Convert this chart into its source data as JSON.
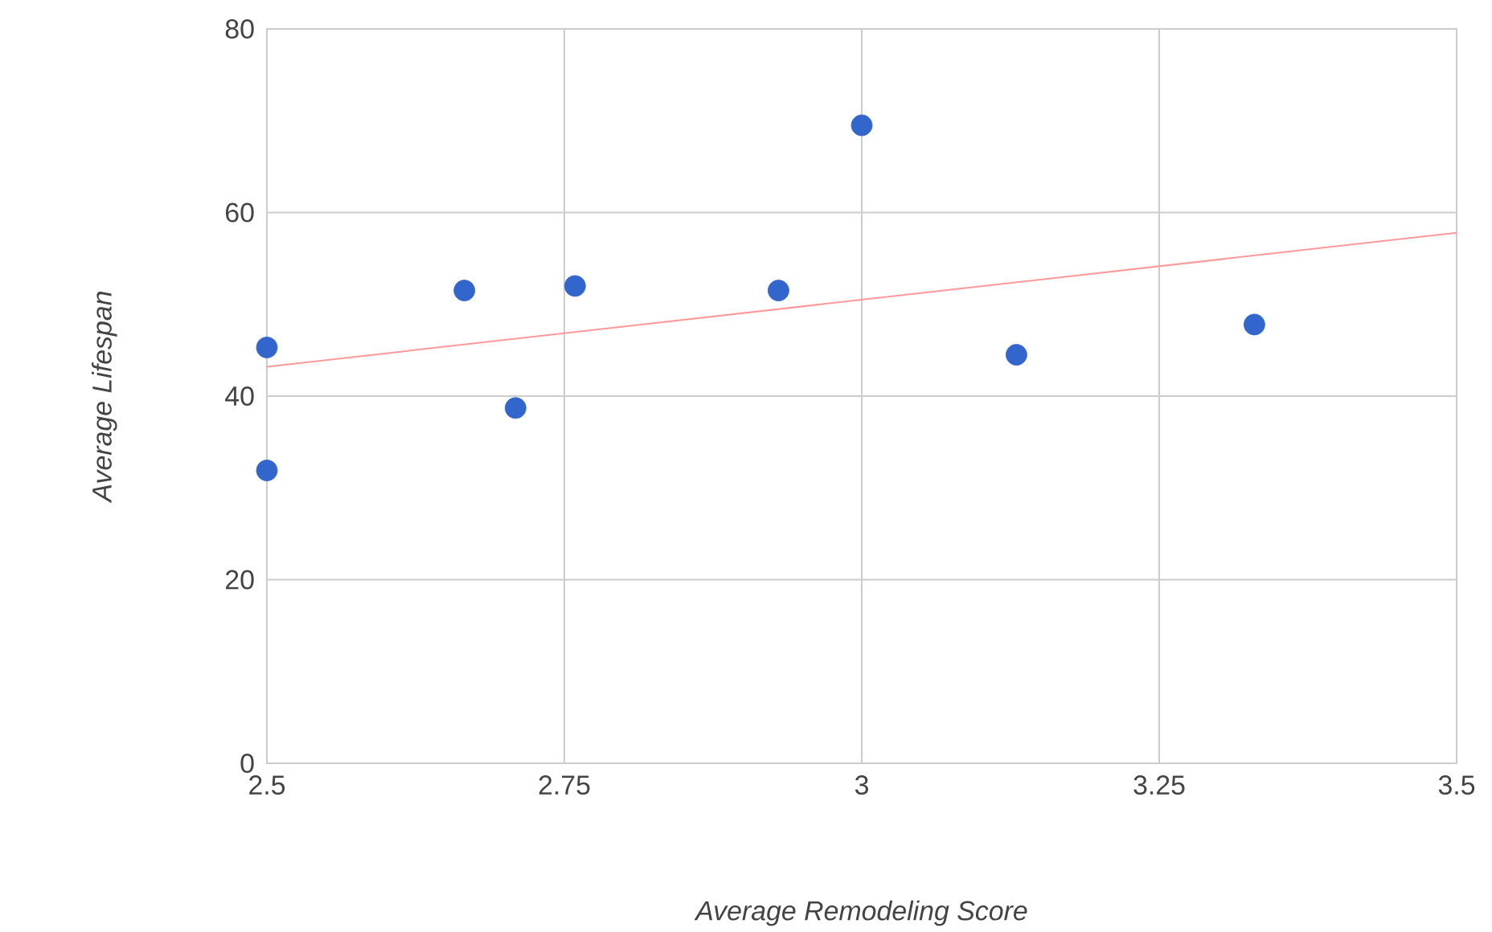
{
  "chart_data": {
    "type": "scatter",
    "xlabel": "Average Remodeling Score",
    "ylabel": "Average Lifespan",
    "xlim": [
      2.5,
      3.5
    ],
    "ylim": [
      0,
      80
    ],
    "xticks": [
      2.5,
      2.75,
      3,
      3.25,
      3.5
    ],
    "yticks": [
      0,
      20,
      40,
      60,
      80
    ],
    "grid": true,
    "series": [
      {
        "color": "#3366cc",
        "marker": "circle",
        "x": [
          2.5,
          2.5,
          2.666,
          2.709,
          2.759,
          2.93,
          3.0,
          3.13,
          3.33
        ],
        "values": [
          45.3,
          31.9,
          51.5,
          38.7,
          52.0,
          51.5,
          69.5,
          44.5,
          47.8
        ]
      },
      {
        "type": "line",
        "color": "#ff9999",
        "marker": "none",
        "x": [
          2.5,
          3.5
        ],
        "values": [
          43.2,
          57.8
        ]
      }
    ]
  }
}
